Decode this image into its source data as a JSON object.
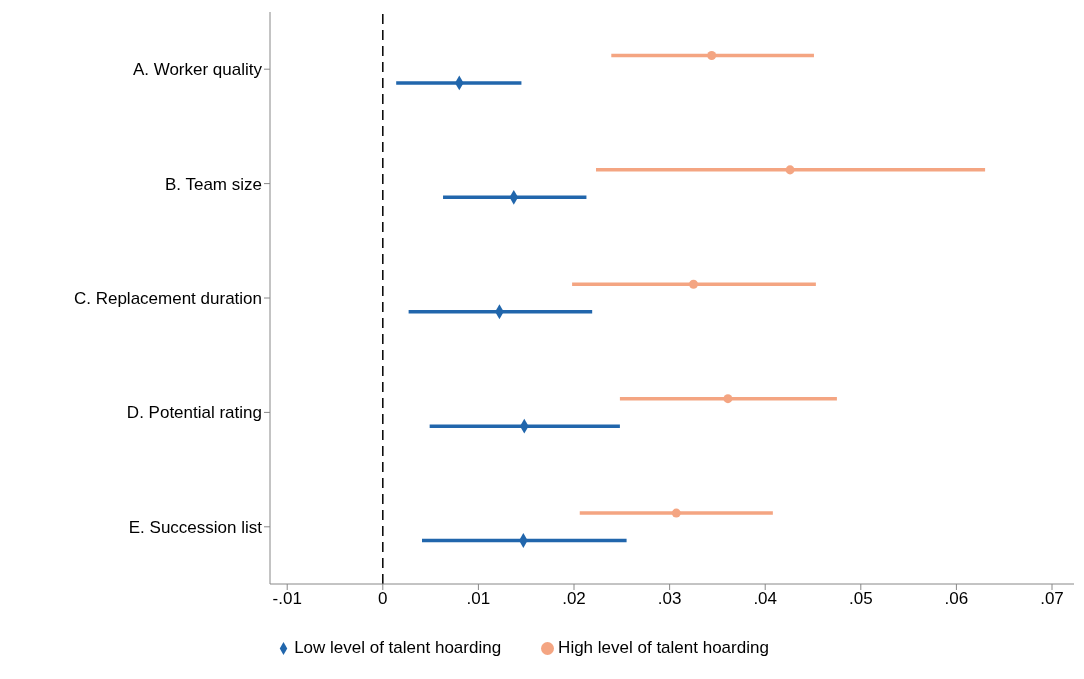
{
  "chart_data": {
    "type": "scatter",
    "orientation": "horizontal",
    "categories": [
      "A. Worker quality",
      "B. Team size",
      "C. Replacement duration",
      "D. Potential rating",
      "E. Succession list"
    ],
    "series": [
      {
        "name": "Low level of talent hoarding",
        "color": "#2166ac",
        "marker": "diamond",
        "values": [
          0.008,
          0.0137,
          0.0122,
          0.0148,
          0.0147
        ],
        "errors": [
          [
            0.0014,
            0.0145
          ],
          [
            0.0063,
            0.0213
          ],
          [
            0.0027,
            0.0219
          ],
          [
            0.0049,
            0.0248
          ],
          [
            0.0041,
            0.0255
          ]
        ]
      },
      {
        "name": "High level of talent hoarding",
        "color": "#f4a582",
        "marker": "circle",
        "values": [
          0.0344,
          0.0426,
          0.0325,
          0.0361,
          0.0307
        ],
        "errors": [
          [
            0.0239,
            0.0451
          ],
          [
            0.0223,
            0.063
          ],
          [
            0.0198,
            0.0453
          ],
          [
            0.0248,
            0.0475
          ],
          [
            0.0206,
            0.0408
          ]
        ]
      }
    ],
    "xlim": [
      -0.0118,
      0.0723
    ],
    "xticks": [
      {
        "value": -0.01,
        "label": "-.01"
      },
      0,
      {
        "value": 0.01,
        "label": ".01"
      },
      {
        "value": 0.02,
        "label": ".02"
      },
      {
        "value": 0.03,
        "label": ".03"
      },
      {
        "value": 0.04,
        "label": ".04"
      },
      {
        "value": 0.05,
        "label": ".05"
      },
      {
        "value": 0.06,
        "label": ".06"
      },
      {
        "value": 0.07,
        "label": ".07"
      }
    ],
    "ref_lines": [
      {
        "axis": "x",
        "value": 0,
        "color": "#000000",
        "line_style": "dashed"
      }
    ],
    "legend": "bottom"
  }
}
